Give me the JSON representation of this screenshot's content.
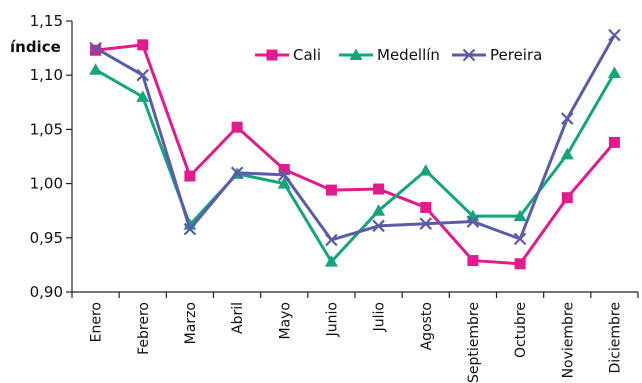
{
  "chart_data": {
    "type": "line",
    "ylabel": "índice",
    "ylim": [
      0.9,
      1.15
    ],
    "yticks": [
      "0,90",
      "0,95",
      "1,00",
      "1,05",
      "1,10",
      "1,15"
    ],
    "ytick_values": [
      0.9,
      0.95,
      1.0,
      1.05,
      1.1,
      1.15
    ],
    "categories": [
      "Enero",
      "Febrero",
      "Marzo",
      "Abril",
      "Mayo",
      "Junio",
      "Julio",
      "Agosto",
      "Septiembre",
      "Octubre",
      "Noviembre",
      "Diciembre"
    ],
    "legend_position": "top-right",
    "grid": false,
    "series": [
      {
        "name": "Cali",
        "color": "#e3198c",
        "marker": "square",
        "values": [
          1.123,
          1.128,
          1.007,
          1.052,
          1.013,
          0.994,
          0.995,
          0.978,
          0.929,
          0.926,
          0.987,
          1.038
        ]
      },
      {
        "name": "Medellín",
        "color": "#13a57c",
        "marker": "triangle",
        "values": [
          1.105,
          1.08,
          0.962,
          1.009,
          1.0,
          0.928,
          0.975,
          1.012,
          0.97,
          0.97,
          1.027,
          1.102
        ]
      },
      {
        "name": "Pereira",
        "color": "#5b5ba8",
        "marker": "x",
        "values": [
          1.125,
          1.1,
          0.958,
          1.01,
          1.008,
          0.948,
          0.961,
          0.963,
          0.965,
          0.949,
          1.06,
          1.137
        ]
      }
    ]
  }
}
